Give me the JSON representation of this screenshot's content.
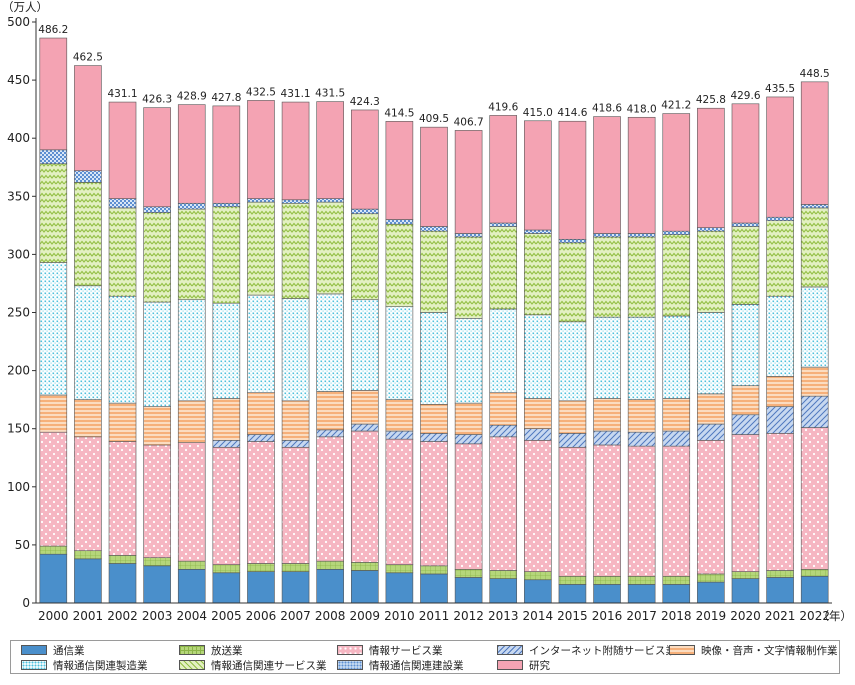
{
  "chart_data": {
    "type": "bar",
    "stacked": true,
    "y_unit_label": "（万人）",
    "x_unit_label": "（年）",
    "ylim": [
      0,
      500
    ],
    "yticks": [
      0,
      50,
      100,
      150,
      200,
      250,
      300,
      350,
      400,
      450,
      500
    ],
    "grid": false,
    "legend_position": "bottom",
    "categories": [
      "2000",
      "2001",
      "2002",
      "2003",
      "2004",
      "2005",
      "2006",
      "2007",
      "2008",
      "2009",
      "2010",
      "2011",
      "2012",
      "2013",
      "2014",
      "2015",
      "2016",
      "2017",
      "2018",
      "2019",
      "2020",
      "2021",
      "2022"
    ],
    "totals": [
      "486.2",
      "462.5",
      "431.1",
      "426.3",
      "428.9",
      "427.8",
      "432.5",
      "431.1",
      "431.5",
      "424.3",
      "414.5",
      "409.5",
      "406.7",
      "419.6",
      "415.0",
      "414.6",
      "418.6",
      "418.0",
      "421.2",
      "425.8",
      "429.6",
      "435.5",
      "448.5"
    ],
    "series": [
      {
        "name": "通信業",
        "color": "#4a8fcb",
        "pattern": "solid",
        "values": [
          42,
          38,
          34,
          32,
          29,
          26,
          27,
          27,
          29,
          28,
          26,
          25,
          22,
          21,
          20,
          16,
          16,
          16,
          16,
          18,
          21,
          22,
          23
        ]
      },
      {
        "name": "放送業",
        "color": "#b5d67a",
        "pattern": "grid",
        "values": [
          7,
          7,
          7,
          7,
          7,
          7,
          7,
          7,
          7,
          7,
          7,
          7,
          7,
          7,
          7,
          7,
          7,
          7,
          7,
          7,
          6,
          6,
          6
        ]
      },
      {
        "name": "情報サービス業",
        "color": "#f6b6c2",
        "pattern": "dots",
        "values": [
          98,
          98,
          98,
          97,
          102,
          101,
          105,
          100,
          107,
          113,
          108,
          107,
          108,
          115,
          113,
          111,
          113,
          112,
          112,
          115,
          118,
          118,
          122
        ]
      },
      {
        "name": "インターネット附随サービス業",
        "color": "#a9c4e8",
        "pattern": "diagonal",
        "values": [
          0,
          0,
          0,
          0,
          0,
          6,
          6,
          6,
          6,
          6,
          7,
          7,
          8,
          10,
          10,
          12,
          12,
          12,
          13,
          14,
          17,
          23,
          27
        ]
      },
      {
        "name": "映像・音声・文字情報制作業",
        "color": "#f8c496",
        "pattern": "hlines",
        "values": [
          32,
          32,
          33,
          33,
          36,
          36,
          36,
          34,
          33,
          29,
          27,
          25,
          27,
          28,
          26,
          28,
          28,
          28,
          28,
          26,
          25,
          26,
          25
        ]
      },
      {
        "name": "情報通信関連製造業",
        "color": "#7fd3e8",
        "pattern": "cyandots",
        "values": [
          114,
          98,
          92,
          90,
          87,
          82,
          84,
          88,
          84,
          78,
          80,
          79,
          73,
          72,
          72,
          68,
          70,
          71,
          71,
          70,
          70,
          69,
          69
        ]
      },
      {
        "name": "情報通信関連サービス業",
        "color": "#cde591",
        "pattern": "zigzag",
        "values": [
          85,
          89,
          76,
          77,
          78,
          83,
          80,
          82,
          79,
          74,
          71,
          70,
          70,
          71,
          70,
          68,
          69,
          69,
          70,
          70,
          67,
          65,
          68
        ]
      },
      {
        "name": "情報通信関連建設業",
        "color": "#8ab4e2",
        "pattern": "checker",
        "values": [
          12,
          10,
          8,
          5,
          5,
          3,
          3,
          3,
          3,
          4,
          4,
          4,
          3,
          3,
          3,
          3,
          3,
          3,
          3,
          3,
          3,
          3,
          3
        ]
      },
      {
        "name": "研究",
        "color": "#f4a3b3",
        "pattern": "solid",
        "values": [
          96.2,
          90.5,
          83.1,
          85.3,
          84.9,
          83.8,
          84.5,
          84.1,
          83.5,
          85.3,
          84.5,
          85.5,
          88.7,
          92.6,
          94.0,
          101.6,
          100.6,
          100.0,
          101.2,
          102.8,
          102.6,
          103.5,
          105.5
        ]
      }
    ]
  }
}
